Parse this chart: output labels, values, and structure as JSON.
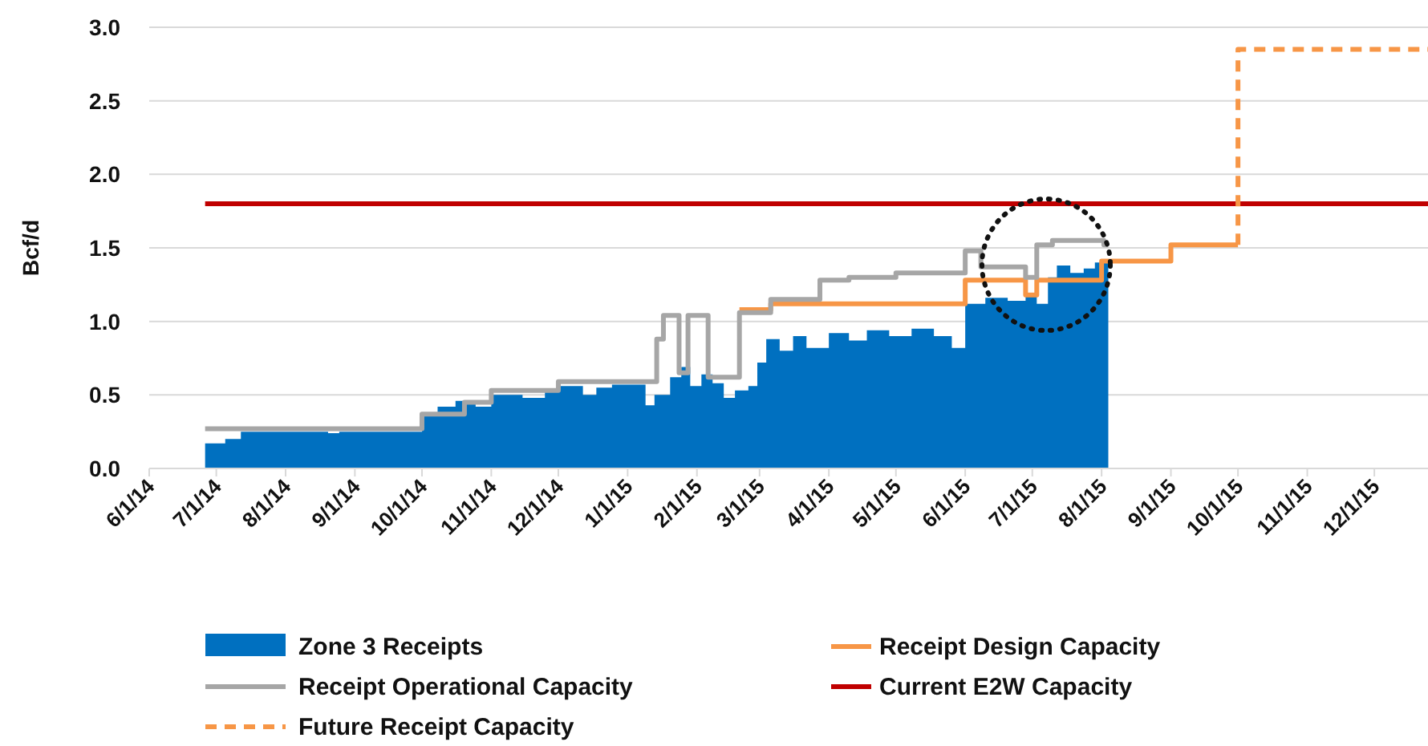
{
  "chart_data": {
    "type": "area",
    "ylabel": "Bcf/d",
    "xlim": [
      "2014-06-01",
      "2015-12-25"
    ],
    "xticks": [
      {
        "value": "2014-06-01",
        "label": "6/1/14"
      },
      {
        "value": "2014-07-01",
        "label": "7/1/14"
      },
      {
        "value": "2014-08-01",
        "label": "8/1/14"
      },
      {
        "value": "2014-09-01",
        "label": "9/1/14"
      },
      {
        "value": "2014-10-01",
        "label": "10/1/14"
      },
      {
        "value": "2014-11-01",
        "label": "11/1/14"
      },
      {
        "value": "2014-12-01",
        "label": "12/1/14"
      },
      {
        "value": "2015-01-01",
        "label": "1/1/15"
      },
      {
        "value": "2015-02-01",
        "label": "2/1/15"
      },
      {
        "value": "2015-03-01",
        "label": "3/1/15"
      },
      {
        "value": "2015-04-01",
        "label": "4/1/15"
      },
      {
        "value": "2015-05-01",
        "label": "5/1/15"
      },
      {
        "value": "2015-06-01",
        "label": "6/1/15"
      },
      {
        "value": "2015-07-01",
        "label": "7/1/15"
      },
      {
        "value": "2015-08-01",
        "label": "8/1/15"
      },
      {
        "value": "2015-09-01",
        "label": "9/1/15"
      },
      {
        "value": "2015-10-01",
        "label": "10/1/15"
      },
      {
        "value": "2015-11-01",
        "label": "11/1/15"
      },
      {
        "value": "2015-12-01",
        "label": "12/1/15"
      }
    ],
    "ylim": [
      0,
      3
    ],
    "yticks": [
      {
        "value": 0,
        "label": "0.0"
      },
      {
        "value": 0.5,
        "label": "0.5"
      },
      {
        "value": 1,
        "label": "1.0"
      },
      {
        "value": 1.5,
        "label": "1.5"
      },
      {
        "value": 2,
        "label": "2.0"
      },
      {
        "value": 2.5,
        "label": "2.5"
      },
      {
        "value": 3,
        "label": "3.0"
      }
    ],
    "grid": "y",
    "legend": "bottom",
    "series": [
      {
        "name": "Zone 3 Receipts",
        "color": "#0070c0",
        "x": [
          "2014-06-26",
          "2014-07-05",
          "2014-07-12",
          "2014-08-20",
          "2014-08-25",
          "2014-10-01",
          "2014-10-08",
          "2014-10-16",
          "2014-10-25",
          "2014-11-01",
          "2014-11-15",
          "2014-11-25",
          "2014-12-01",
          "2014-12-12",
          "2014-12-18",
          "2014-12-25",
          "2015-01-05",
          "2015-01-09",
          "2015-01-13",
          "2015-01-20",
          "2015-01-25",
          "2015-01-29",
          "2015-02-03",
          "2015-02-08",
          "2015-02-13",
          "2015-02-18",
          "2015-02-24",
          "2015-02-28",
          "2015-03-04",
          "2015-03-10",
          "2015-03-16",
          "2015-03-22",
          "2015-04-01",
          "2015-04-10",
          "2015-04-18",
          "2015-04-28",
          "2015-05-08",
          "2015-05-18",
          "2015-05-26",
          "2015-06-01",
          "2015-06-10",
          "2015-06-20",
          "2015-06-28",
          "2015-07-03",
          "2015-07-08",
          "2015-07-12",
          "2015-07-18",
          "2015-07-24",
          "2015-07-29",
          "2015-08-04"
        ],
        "values": [
          0.17,
          0.2,
          0.25,
          0.24,
          0.25,
          0.38,
          0.42,
          0.46,
          0.42,
          0.5,
          0.48,
          0.52,
          0.56,
          0.5,
          0.55,
          0.57,
          0.57,
          0.43,
          0.5,
          0.62,
          0.69,
          0.56,
          0.64,
          0.58,
          0.48,
          0.53,
          0.56,
          0.72,
          0.88,
          0.8,
          0.9,
          0.82,
          0.92,
          0.87,
          0.94,
          0.9,
          0.95,
          0.9,
          0.82,
          1.12,
          1.16,
          1.14,
          1.19,
          1.12,
          1.3,
          1.38,
          1.33,
          1.36,
          1.4,
          1.4
        ]
      },
      {
        "name": "Receipt Design Capacity",
        "type": "step",
        "color": "#f79646",
        "x": [
          "2015-02-20",
          "2015-03-06",
          "2015-06-01",
          "2015-06-28",
          "2015-07-03",
          "2015-08-01",
          "2015-09-01",
          "2015-10-01"
        ],
        "values": [
          1.08,
          1.12,
          1.28,
          1.18,
          1.28,
          1.41,
          1.52,
          1.52
        ]
      },
      {
        "name": "Receipt Operational Capacity",
        "type": "step",
        "color": "#a6a6a6",
        "x": [
          "2014-06-26",
          "2014-10-01",
          "2014-10-20",
          "2014-11-01",
          "2014-12-01",
          "2015-01-14",
          "2015-01-17",
          "2015-01-24",
          "2015-01-28",
          "2015-02-06",
          "2015-02-20",
          "2015-03-06",
          "2015-03-28",
          "2015-04-10",
          "2015-05-01",
          "2015-06-01",
          "2015-06-08",
          "2015-06-28",
          "2015-07-03",
          "2015-07-10",
          "2015-08-02",
          "2015-08-04"
        ],
        "values": [
          0.27,
          0.37,
          0.45,
          0.53,
          0.59,
          0.88,
          1.04,
          0.65,
          1.04,
          0.62,
          1.06,
          1.15,
          1.28,
          1.3,
          1.33,
          1.48,
          1.37,
          1.3,
          1.52,
          1.55,
          1.52,
          1.52
        ]
      },
      {
        "name": "Current E2W Capacity",
        "type": "line",
        "color": "#c00000",
        "x": [
          "2014-06-26",
          "2015-12-25"
        ],
        "values": [
          1.8,
          1.8
        ]
      },
      {
        "name": "Future Receipt Capacity",
        "type": "step",
        "color": "#f79646",
        "line_style": "dashed",
        "x": [
          "2015-10-01",
          "2015-10-01",
          "2015-12-25"
        ],
        "values": [
          1.52,
          2.85,
          2.85
        ]
      }
    ]
  }
}
